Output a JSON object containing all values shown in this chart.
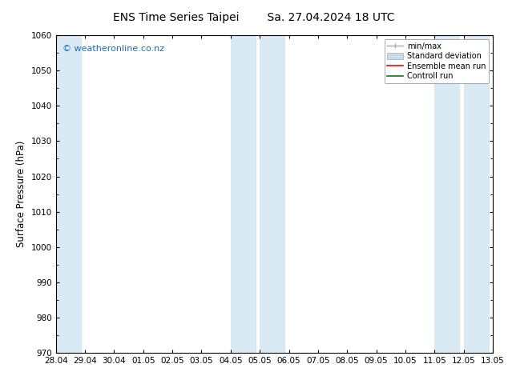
{
  "title_left": "ENS Time Series Taipei",
  "title_right": "Sa. 27.04.2024 18 UTC",
  "ylabel": "Surface Pressure (hPa)",
  "ylim": [
    970,
    1060
  ],
  "yticks": [
    970,
    980,
    990,
    1000,
    1010,
    1020,
    1030,
    1040,
    1050,
    1060
  ],
  "xtick_labels": [
    "28.04",
    "29.04",
    "30.04",
    "01.05",
    "02.05",
    "03.05",
    "04.05",
    "05.05",
    "06.05",
    "07.05",
    "08.05",
    "09.05",
    "10.05",
    "11.05",
    "12.05",
    "13.05"
  ],
  "xtick_positions": [
    0,
    1,
    2,
    3,
    4,
    5,
    6,
    7,
    8,
    9,
    10,
    11,
    12,
    13,
    14,
    15
  ],
  "shaded_bands": [
    {
      "x_start": 0.0,
      "x_end": 0.85,
      "color": "#daeaf5"
    },
    {
      "x_start": 6.0,
      "x_end": 6.85,
      "color": "#daeaf5"
    },
    {
      "x_start": 7.0,
      "x_end": 7.85,
      "color": "#daeaf5"
    },
    {
      "x_start": 13.0,
      "x_end": 13.85,
      "color": "#daeaf5"
    },
    {
      "x_start": 14.0,
      "x_end": 14.85,
      "color": "#daeaf5"
    }
  ],
  "thin_vlines": [
    0.85,
    6.85,
    7.85,
    13.85,
    14.85
  ],
  "watermark": "© weatheronline.co.nz",
  "watermark_color": "#1a6bbf",
  "bg_color": "#ffffff",
  "legend_minmax_color": "#aaaaaa",
  "legend_stddev_color": "#c8dce8",
  "legend_ens_color": "#ff0000",
  "legend_ctrl_color": "#008000",
  "tick_label_fontsize": 7.5,
  "axis_label_fontsize": 8.5,
  "title_fontsize": 10,
  "watermark_fontsize": 8
}
